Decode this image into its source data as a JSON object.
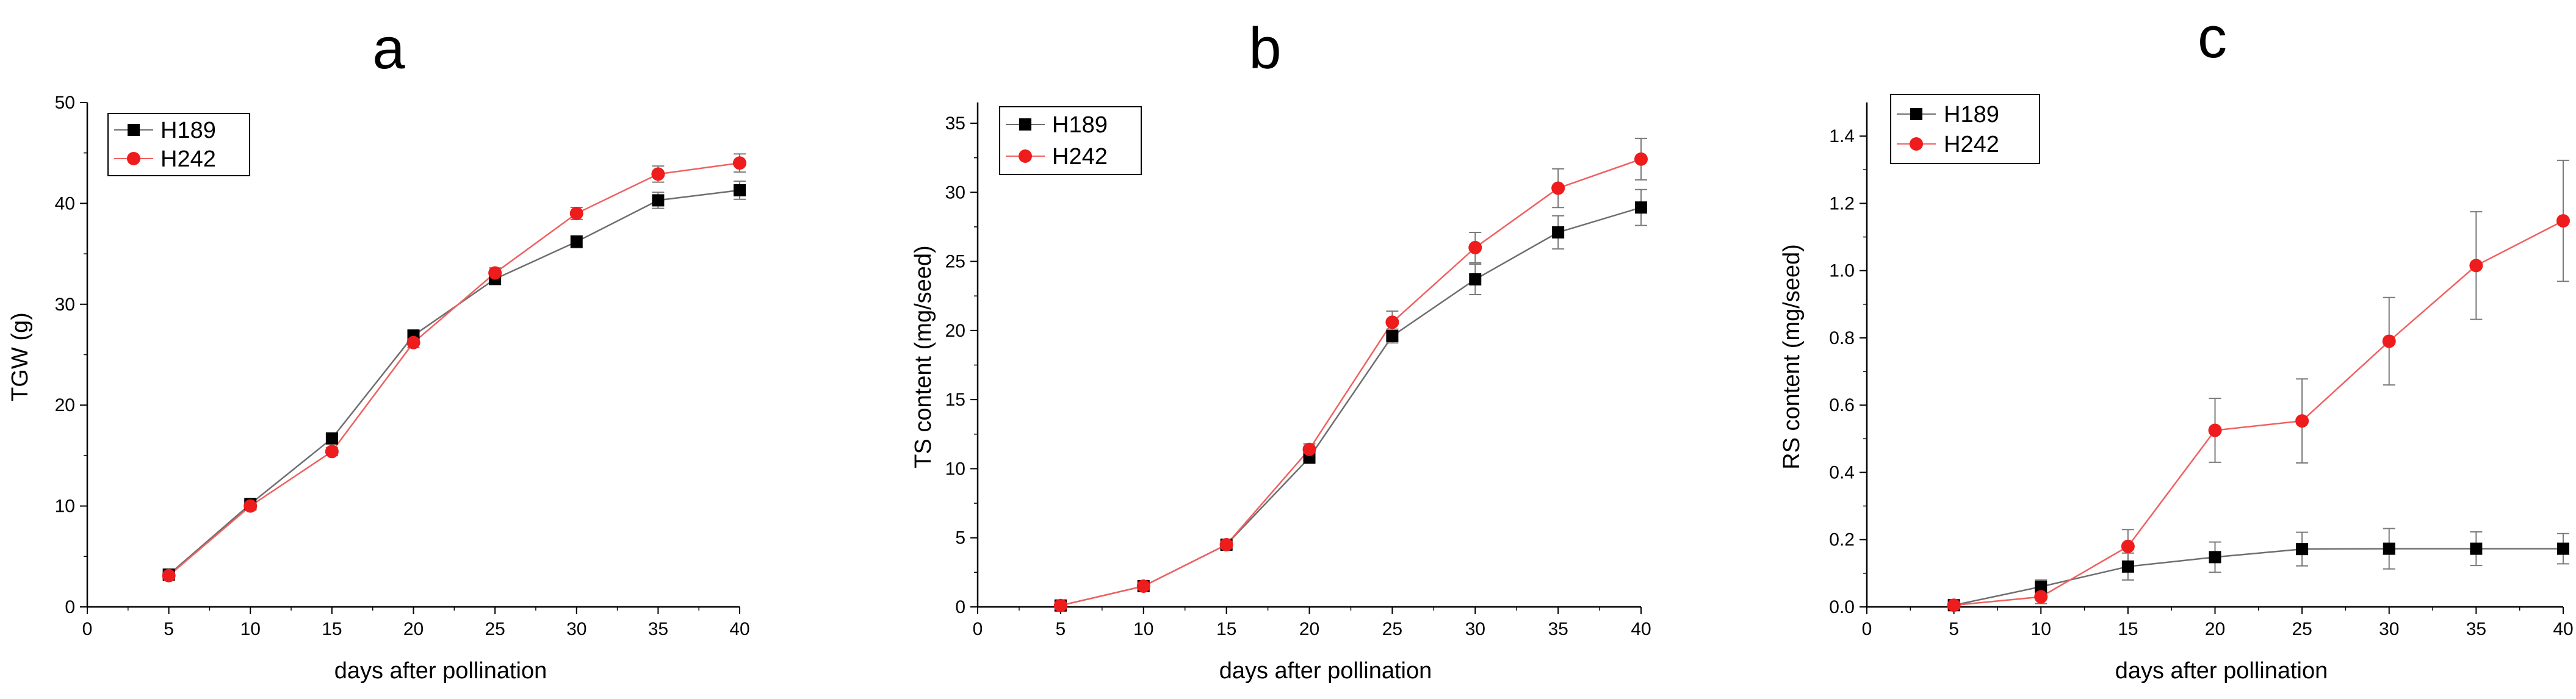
{
  "colors": {
    "H189": "#000000",
    "H189_line": "#6e6e6e",
    "H242": "#ee1c1c",
    "H242_line": "#f06060",
    "axis": "#000000",
    "error_bar": "#7a7a7a"
  },
  "chart_data": [
    {
      "type": "line",
      "panel": "a",
      "title": "a",
      "xlabel": "days after pollination",
      "ylabel": "TGW (g)",
      "xlim": [
        0,
        40
      ],
      "ylim": [
        0,
        50
      ],
      "xticks": [
        0,
        5,
        10,
        15,
        20,
        25,
        30,
        35,
        40
      ],
      "yticks": [
        0,
        10,
        20,
        30,
        40,
        50
      ],
      "ytick_labels": [
        "0",
        "10",
        "20",
        "30",
        "40",
        "50"
      ],
      "legend_position": "top-left",
      "x": [
        5,
        10,
        15,
        20,
        25,
        30,
        35,
        40
      ],
      "series": [
        {
          "name": "H189",
          "marker": "square",
          "values": [
            3.2,
            10.2,
            16.7,
            26.9,
            32.5,
            36.2,
            40.3,
            41.3
          ],
          "errors": [
            0.3,
            0.4,
            0.4,
            0.5,
            0.5,
            0.6,
            0.8,
            0.9
          ]
        },
        {
          "name": "H242",
          "marker": "circle",
          "values": [
            3.1,
            10.0,
            15.4,
            26.2,
            33.1,
            39.0,
            42.9,
            44.0
          ],
          "errors": [
            0.3,
            0.4,
            0.4,
            0.5,
            0.5,
            0.6,
            0.8,
            0.9
          ]
        }
      ]
    },
    {
      "type": "line",
      "panel": "b",
      "title": "b",
      "xlabel": "days after pollination",
      "ylabel": "TS content (mg/seed)",
      "xlim": [
        0,
        40
      ],
      "ylim": [
        0,
        36.5
      ],
      "xticks": [
        0,
        5,
        10,
        15,
        20,
        25,
        30,
        35,
        40
      ],
      "yticks": [
        0,
        5,
        10,
        15,
        20,
        25,
        30,
        35
      ],
      "ytick_labels": [
        "0",
        "5",
        "10",
        "15",
        "20",
        "25",
        "30",
        "35"
      ],
      "legend_position": "top-left",
      "x": [
        5,
        10,
        15,
        20,
        25,
        30,
        35,
        40
      ],
      "series": [
        {
          "name": "H189",
          "marker": "square",
          "values": [
            0.1,
            1.5,
            4.5,
            10.8,
            19.6,
            23.7,
            27.1,
            28.9
          ],
          "errors": [
            0.1,
            0.2,
            0.3,
            0.4,
            0.5,
            1.1,
            1.2,
            1.3
          ]
        },
        {
          "name": "H242",
          "marker": "circle",
          "values": [
            0.1,
            1.5,
            4.5,
            11.4,
            20.6,
            26.0,
            30.3,
            32.4
          ],
          "errors": [
            0.1,
            0.2,
            0.3,
            0.4,
            0.8,
            1.1,
            1.4,
            1.5
          ]
        }
      ]
    },
    {
      "type": "line",
      "panel": "c",
      "title": "c",
      "xlabel": "days after pollination",
      "ylabel": "RS content (mg/seed)",
      "xlim": [
        0,
        40
      ],
      "ylim": [
        0,
        1.5
      ],
      "xticks": [
        0,
        5,
        10,
        15,
        20,
        25,
        30,
        35,
        40
      ],
      "yticks": [
        0,
        0.2,
        0.4,
        0.6,
        0.8,
        1.0,
        1.2,
        1.4
      ],
      "ytick_labels": [
        "0.0",
        "0.2",
        "0.4",
        "0.6",
        "0.8",
        "1.0",
        "1.2",
        "1.4"
      ],
      "legend_position": "top-left",
      "x": [
        5,
        10,
        15,
        20,
        25,
        30,
        35,
        40
      ],
      "series": [
        {
          "name": "H189",
          "marker": "square",
          "values": [
            0.005,
            0.06,
            0.12,
            0.148,
            0.172,
            0.173,
            0.173,
            0.173
          ],
          "errors": [
            0.01,
            0.02,
            0.04,
            0.045,
            0.05,
            0.06,
            0.05,
            0.045
          ]
        },
        {
          "name": "H242",
          "marker": "circle",
          "values": [
            0.005,
            0.03,
            0.18,
            0.525,
            0.553,
            0.79,
            1.015,
            1.148
          ],
          "errors": [
            0.01,
            0.02,
            0.05,
            0.095,
            0.125,
            0.13,
            0.16,
            0.18
          ]
        }
      ]
    }
  ]
}
